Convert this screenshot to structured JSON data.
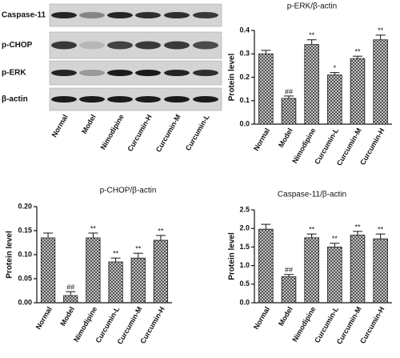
{
  "blot": {
    "bands": [
      "Caspase-11",
      "p-CHOP",
      "p-ERK",
      "β-actin"
    ],
    "lanes": [
      "Normal",
      "Model",
      "Nimodipine",
      "Curcumin-H",
      "Curcumin-M",
      "Curcumin-L"
    ]
  },
  "chart_data": [
    {
      "type": "bar",
      "title": "p-ERK/β-actin",
      "y_label": "Protein level",
      "color": "#444444",
      "categories": [
        "Normal",
        "Model",
        "Nimodipine",
        "Curcumin-L",
        "Curcumin-M",
        "Curcumin-H"
      ],
      "values": [
        0.3,
        0.11,
        0.34,
        0.21,
        0.28,
        0.36
      ],
      "errors": [
        0.015,
        0.01,
        0.02,
        0.01,
        0.01,
        0.02
      ],
      "annotations": [
        null,
        "##",
        "**",
        "*",
        "**",
        "**"
      ],
      "ylim": [
        0,
        0.4
      ],
      "yticks": [
        {
          "value": 0,
          "label": "0.0"
        },
        0.1,
        0.2,
        0.3,
        0.4
      ]
    },
    {
      "type": "bar",
      "title": "p-CHOP/β-actin",
      "y_label": "Protein level",
      "color": "#444444",
      "categories": [
        "Normal",
        "Model",
        "Nimodipine",
        "Curcumin-L",
        "Curcumin-M",
        "Curcumin-H"
      ],
      "values": [
        0.135,
        0.015,
        0.135,
        0.085,
        0.093,
        0.13
      ],
      "errors": [
        0.01,
        0.008,
        0.01,
        0.008,
        0.01,
        0.01
      ],
      "annotations": [
        null,
        "##",
        "**",
        "**",
        "**",
        "**"
      ],
      "ylim": [
        0,
        0.2
      ],
      "yticks": [
        {
          "value": 0,
          "label": "0.00"
        },
        0.05,
        {
          "value": 0.1,
          "label": "0.10"
        },
        0.15,
        {
          "value": 0.2,
          "label": "0.20"
        }
      ]
    },
    {
      "type": "bar",
      "title": "Caspase-11/β-actin",
      "y_label": "Protein level",
      "color": "#444444",
      "categories": [
        "Normal",
        "Model",
        "Nimodipine",
        "Curcumin-L",
        "Curcumin-M",
        "Curcumin-H"
      ],
      "values": [
        1.98,
        0.7,
        1.75,
        1.5,
        1.82,
        1.72
      ],
      "errors": [
        0.13,
        0.06,
        0.1,
        0.1,
        0.1,
        0.13
      ],
      "annotations": [
        null,
        "##",
        "**",
        "**",
        "**",
        "**"
      ],
      "ylim": [
        0,
        2.5
      ],
      "yticks": [
        {
          "value": 0,
          "label": "0.0"
        },
        0.5,
        {
          "value": 1,
          "label": "1.0"
        },
        1.5,
        {
          "value": 2,
          "label": "2.0"
        },
        2.5
      ]
    }
  ]
}
